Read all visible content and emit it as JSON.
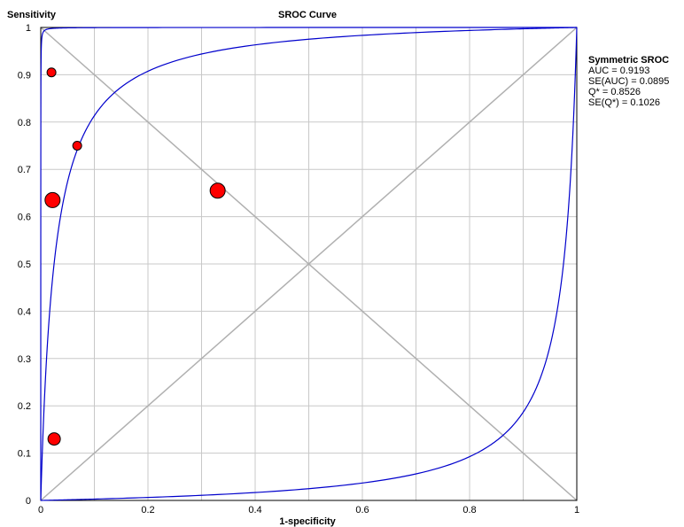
{
  "chart_data": {
    "type": "scatter",
    "title": "SROC Curve",
    "xlabel": "1-specificity",
    "ylabel": "Sensitivity",
    "xlim": [
      0,
      1
    ],
    "ylim": [
      0,
      1
    ],
    "grid": true,
    "x_ticks": [
      "0",
      "0.2",
      "0.4",
      "0.6",
      "0.8",
      "1"
    ],
    "y_ticks": [
      "0",
      "0.1",
      "0.2",
      "0.3",
      "0.4",
      "0.5",
      "0.6",
      "0.7",
      "0.8",
      "0.9",
      "1"
    ],
    "points": [
      {
        "x": 0.02,
        "y": 0.905,
        "size": "small"
      },
      {
        "x": 0.068,
        "y": 0.75,
        "size": "small"
      },
      {
        "x": 0.022,
        "y": 0.635,
        "size": "large"
      },
      {
        "x": 0.33,
        "y": 0.655,
        "size": "large"
      },
      {
        "x": 0.025,
        "y": 0.13,
        "size": "medium"
      }
    ],
    "sroc_curves": [
      {
        "label": "upper",
        "log_dor": 10
      },
      {
        "label": "fitted",
        "log_dor": 3.67
      },
      {
        "label": "lower",
        "log_dor": -3.67
      }
    ],
    "reference_lines": [
      "diagonal",
      "anti-diagonal"
    ],
    "legend_position": "right",
    "colors": {
      "curve": "#0000cc",
      "point": "#ff0000",
      "reference": "#b0b0b0",
      "grid": "#c8c8c8"
    },
    "legend": {
      "title": "Symmetric SROC",
      "lines": [
        "AUC = 0.9193",
        "SE(AUC) = 0.0895",
        "Q* = 0.8526",
        "SE(Q*) = 0.1026"
      ]
    }
  }
}
